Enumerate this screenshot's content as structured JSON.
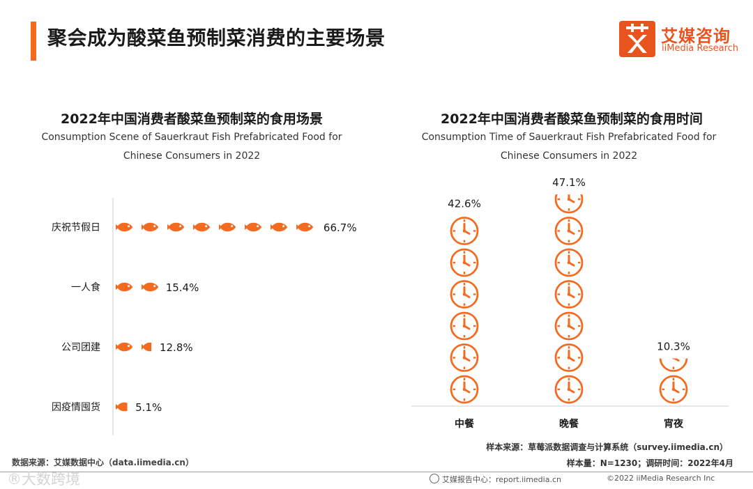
{
  "page": {
    "title": "聚会成为酸菜鱼预制菜消费的主要场景"
  },
  "logo": {
    "mark": "艾",
    "cn": "艾媒咨询",
    "en": "iiMedia Research"
  },
  "colors": {
    "accent": "#f26b21",
    "logo": "#e8541e",
    "fish": "#f26b21",
    "clock": "#f26b21"
  },
  "chart_data": [
    {
      "type": "bar",
      "style": "pictogram",
      "icon": "fish-icon",
      "title": "2022年中国消费者酸菜鱼预制菜的食用场景",
      "subtitle_line1": "Consumption Scene of Sauerkraut Fish Prefabricated Food for",
      "subtitle_line2": "Chinese Consumers in 2022",
      "categories": [
        "庆祝节假日",
        "一人食",
        "公司团建",
        "因疫情囤货"
      ],
      "values": [
        66.7,
        15.4,
        12.8,
        5.1
      ],
      "value_labels": [
        "66.7%",
        "15.4%",
        "12.8%",
        "5.1%"
      ],
      "unit": "%",
      "units_per_icon": 8.34,
      "orientation": "horizontal"
    },
    {
      "type": "bar",
      "style": "pictogram",
      "icon": "clock-icon",
      "title": "2022年中国消费者酸菜鱼预制菜的食用时间",
      "subtitle_line1": "Consumption Time of Sauerkraut Fish Prefabricated Food for",
      "subtitle_line2": "Chinese Consumers in 2022",
      "categories": [
        "中餐",
        "晚餐",
        "宵夜"
      ],
      "values": [
        42.6,
        47.1,
        10.3
      ],
      "value_labels": [
        "42.6%",
        "47.1%",
        "10.3%"
      ],
      "unit": "%",
      "units_per_icon": 7.1,
      "orientation": "vertical"
    }
  ],
  "sources": {
    "left": "数据来源：艾媒数据中心（data.iimedia.cn）",
    "right_line1": "样本来源：草莓派数据调查与计算系统（survey.iimedia.cn）",
    "right_line2": "样本量：N=1230；调研时间：2022年4月"
  },
  "footer": {
    "watermark": "®大数跨境",
    "report": "艾媒报告中心：report.iimedia.cn",
    "copyright": "©2022  iiMedia Research  Inc"
  }
}
